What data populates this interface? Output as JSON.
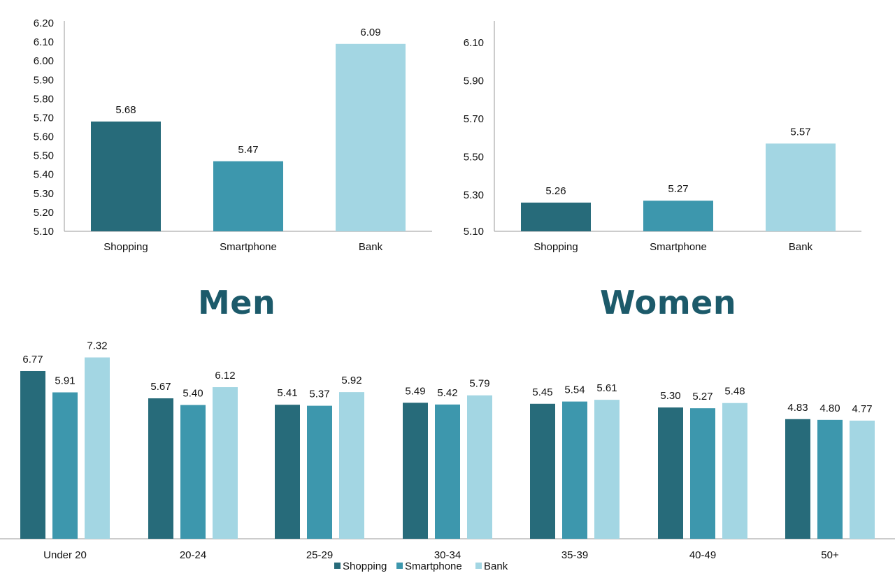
{
  "colors": {
    "shopping": "#276b7a",
    "smartphone": "#3d97ad",
    "bank": "#a3d6e3",
    "title": "#1c5a6a",
    "axis": "#9a9a9a",
    "text": "#111111"
  },
  "titles": {
    "men": "Men",
    "women": "Women"
  },
  "chart_data": [
    {
      "id": "men",
      "type": "bar",
      "categories": [
        "Shopping",
        "Smartphone",
        "Bank"
      ],
      "values": [
        5.68,
        5.47,
        6.09
      ],
      "value_labels": [
        "5.68",
        "5.47",
        "6.09"
      ],
      "ylim": [
        5.1,
        6.2
      ],
      "yticks": [
        "5.10",
        "5.20",
        "5.30",
        "5.40",
        "5.50",
        "5.60",
        "5.70",
        "5.80",
        "5.90",
        "6.00",
        "6.10",
        "6.20"
      ],
      "grid": false
    },
    {
      "id": "women",
      "type": "bar",
      "categories": [
        "Shopping",
        "Smartphone",
        "Bank"
      ],
      "values": [
        5.26,
        5.27,
        5.57
      ],
      "value_labels": [
        "5.26",
        "5.27",
        "5.57"
      ],
      "ylim": [
        5.1,
        6.2
      ],
      "yticks": [
        "5.10",
        "5.30",
        "5.50",
        "5.70",
        "5.90",
        "6.10"
      ],
      "grid": false
    },
    {
      "id": "age",
      "type": "bar",
      "categories": [
        "Under 20",
        "20-24",
        "25-29",
        "30-34",
        "35-39",
        "40-49",
        "50+"
      ],
      "series": [
        {
          "name": "Shopping",
          "values": [
            6.77,
            5.67,
            5.41,
            5.49,
            5.45,
            5.3,
            4.83
          ],
          "labels": [
            "6.77",
            "5.67",
            "5.41",
            "5.49",
            "5.45",
            "5.30",
            "4.83"
          ]
        },
        {
          "name": "Smartphone",
          "values": [
            5.91,
            5.4,
            5.37,
            5.42,
            5.54,
            5.27,
            4.8
          ],
          "labels": [
            "5.91",
            "5.40",
            "5.37",
            "5.42",
            "5.54",
            "5.27",
            "4.80"
          ]
        },
        {
          "name": "Bank",
          "values": [
            7.32,
            6.12,
            5.92,
            5.79,
            5.61,
            5.48,
            4.77
          ],
          "labels": [
            "7.32",
            "6.12",
            "5.92",
            "5.79",
            "5.61",
            "5.48",
            "4.77"
          ]
        }
      ],
      "ylim": [
        0,
        8
      ],
      "legend": "bottom-center",
      "grid": false
    }
  ]
}
